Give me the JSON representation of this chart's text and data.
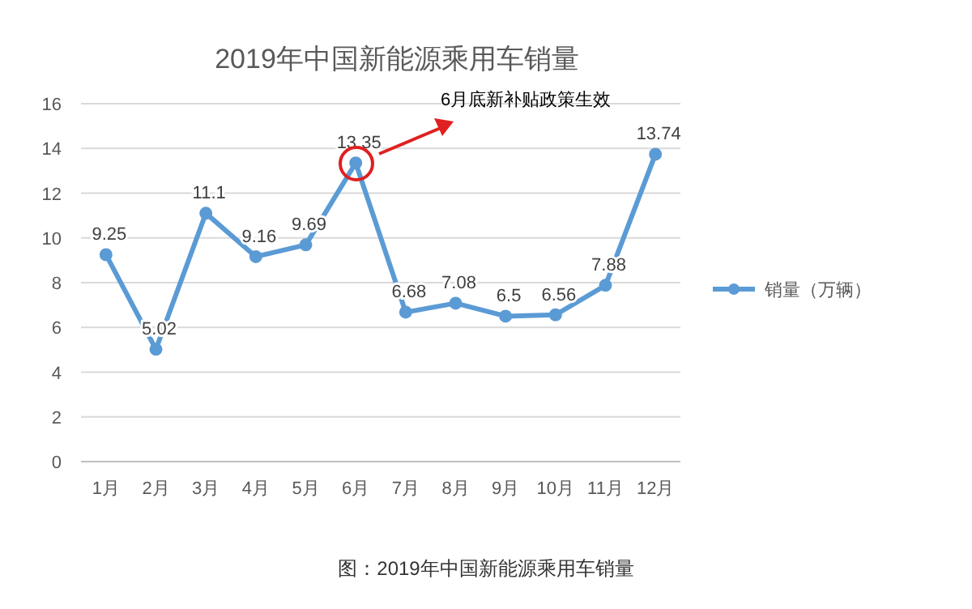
{
  "chart_data": {
    "type": "line",
    "title": "2019年中国新能源乘用车销量",
    "categories": [
      "1月",
      "2月",
      "3月",
      "4月",
      "5月",
      "6月",
      "7月",
      "8月",
      "9月",
      "10月",
      "11月",
      "12月"
    ],
    "series": [
      {
        "name": "销量（万辆）",
        "color": "#5b9bd5",
        "values": [
          9.25,
          5.02,
          11.1,
          9.16,
          9.69,
          13.35,
          6.68,
          7.08,
          6.5,
          6.56,
          7.88,
          13.74
        ]
      }
    ],
    "ylim": [
      0,
      16
    ],
    "yticks": [
      0,
      2,
      4,
      6,
      8,
      10,
      12,
      14,
      16
    ],
    "grid": "y",
    "legend": "right",
    "marker": "circle",
    "data_labels": true,
    "annotations": [
      "6月底新补贴政策生效",
      "图：2019年中国新能源乘用车销量"
    ]
  }
}
